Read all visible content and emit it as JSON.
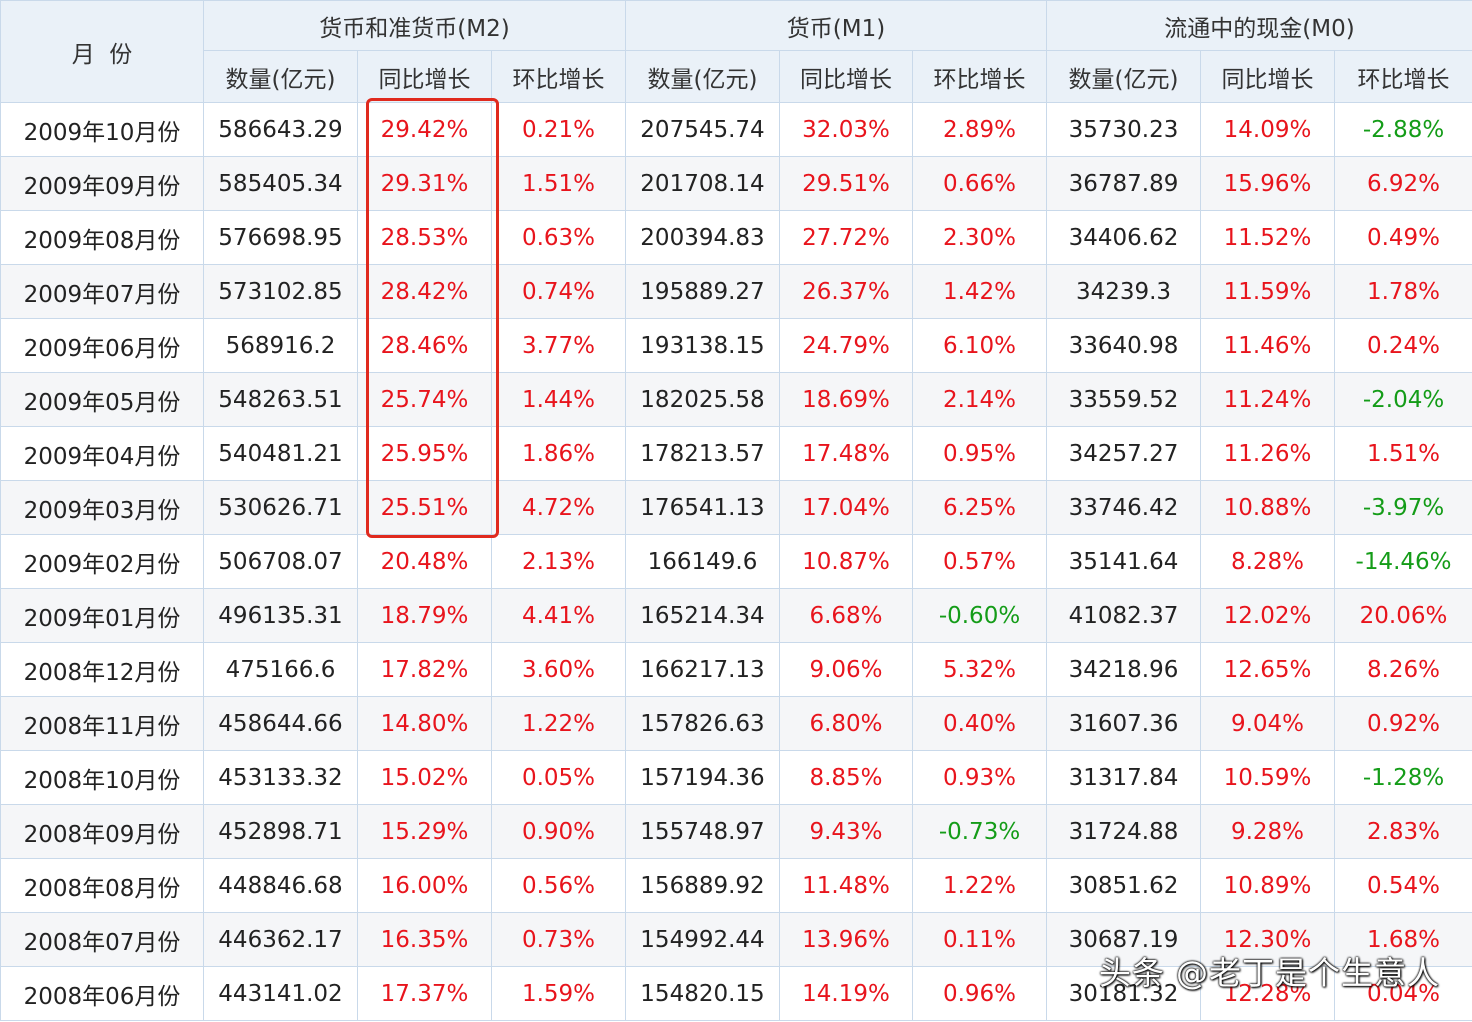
{
  "headers": {
    "month": "月  份",
    "groups": [
      "货币和准货币(M2)",
      "货币(M1)",
      "流通中的现金(M0)"
    ],
    "sub": [
      "数量(亿元)",
      "同比增长",
      "环比增长",
      "数量(亿元)",
      "同比增长",
      "环比增长",
      "数量(亿元)",
      "同比增长",
      "环比增长"
    ]
  },
  "rows": [
    [
      "2009年10月份",
      "586643.29",
      "29.42%",
      "0.21%",
      "207545.74",
      "32.03%",
      "2.89%",
      "35730.23",
      "14.09%",
      "-2.88%"
    ],
    [
      "2009年09月份",
      "585405.34",
      "29.31%",
      "1.51%",
      "201708.14",
      "29.51%",
      "0.66%",
      "36787.89",
      "15.96%",
      "6.92%"
    ],
    [
      "2009年08月份",
      "576698.95",
      "28.53%",
      "0.63%",
      "200394.83",
      "27.72%",
      "2.30%",
      "34406.62",
      "11.52%",
      "0.49%"
    ],
    [
      "2009年07月份",
      "573102.85",
      "28.42%",
      "0.74%",
      "195889.27",
      "26.37%",
      "1.42%",
      "34239.3",
      "11.59%",
      "1.78%"
    ],
    [
      "2009年06月份",
      "568916.2",
      "28.46%",
      "3.77%",
      "193138.15",
      "24.79%",
      "6.10%",
      "33640.98",
      "11.46%",
      "0.24%"
    ],
    [
      "2009年05月份",
      "548263.51",
      "25.74%",
      "1.44%",
      "182025.58",
      "18.69%",
      "2.14%",
      "33559.52",
      "11.24%",
      "-2.04%"
    ],
    [
      "2009年04月份",
      "540481.21",
      "25.95%",
      "1.86%",
      "178213.57",
      "17.48%",
      "0.95%",
      "34257.27",
      "11.26%",
      "1.51%"
    ],
    [
      "2009年03月份",
      "530626.71",
      "25.51%",
      "4.72%",
      "176541.13",
      "17.04%",
      "6.25%",
      "33746.42",
      "10.88%",
      "-3.97%"
    ],
    [
      "2009年02月份",
      "506708.07",
      "20.48%",
      "2.13%",
      "166149.6",
      "10.87%",
      "0.57%",
      "35141.64",
      "8.28%",
      "-14.46%"
    ],
    [
      "2009年01月份",
      "496135.31",
      "18.79%",
      "4.41%",
      "165214.34",
      "6.68%",
      "-0.60%",
      "41082.37",
      "12.02%",
      "20.06%"
    ],
    [
      "2008年12月份",
      "475166.6",
      "17.82%",
      "3.60%",
      "166217.13",
      "9.06%",
      "5.32%",
      "34218.96",
      "12.65%",
      "8.26%"
    ],
    [
      "2008年11月份",
      "458644.66",
      "14.80%",
      "1.22%",
      "157826.63",
      "6.80%",
      "0.40%",
      "31607.36",
      "9.04%",
      "0.92%"
    ],
    [
      "2008年10月份",
      "453133.32",
      "15.02%",
      "0.05%",
      "157194.36",
      "8.85%",
      "0.93%",
      "31317.84",
      "10.59%",
      "-1.28%"
    ],
    [
      "2008年09月份",
      "452898.71",
      "15.29%",
      "0.90%",
      "155748.97",
      "9.43%",
      "-0.73%",
      "31724.88",
      "9.28%",
      "2.83%"
    ],
    [
      "2008年08月份",
      "448846.68",
      "16.00%",
      "0.56%",
      "156889.92",
      "11.48%",
      "1.22%",
      "30851.62",
      "10.89%",
      "0.54%"
    ],
    [
      "2008年07月份",
      "446362.17",
      "16.35%",
      "0.73%",
      "154992.44",
      "13.96%",
      "0.11%",
      "30687.19",
      "12.30%",
      "1.68%"
    ],
    [
      "2008年06月份",
      "443141.02",
      "17.37%",
      "1.59%",
      "154820.15",
      "14.19%",
      "0.96%",
      "30181.32",
      "12.28%",
      "0.04%"
    ]
  ],
  "watermark": "头条 @老丁是个生意人",
  "colors": {
    "positive": "#e8141c",
    "negative": "#149c18",
    "header_bg": "#eaf1f8",
    "border": "#c9d9ea",
    "highlight": "#e02a1e"
  }
}
